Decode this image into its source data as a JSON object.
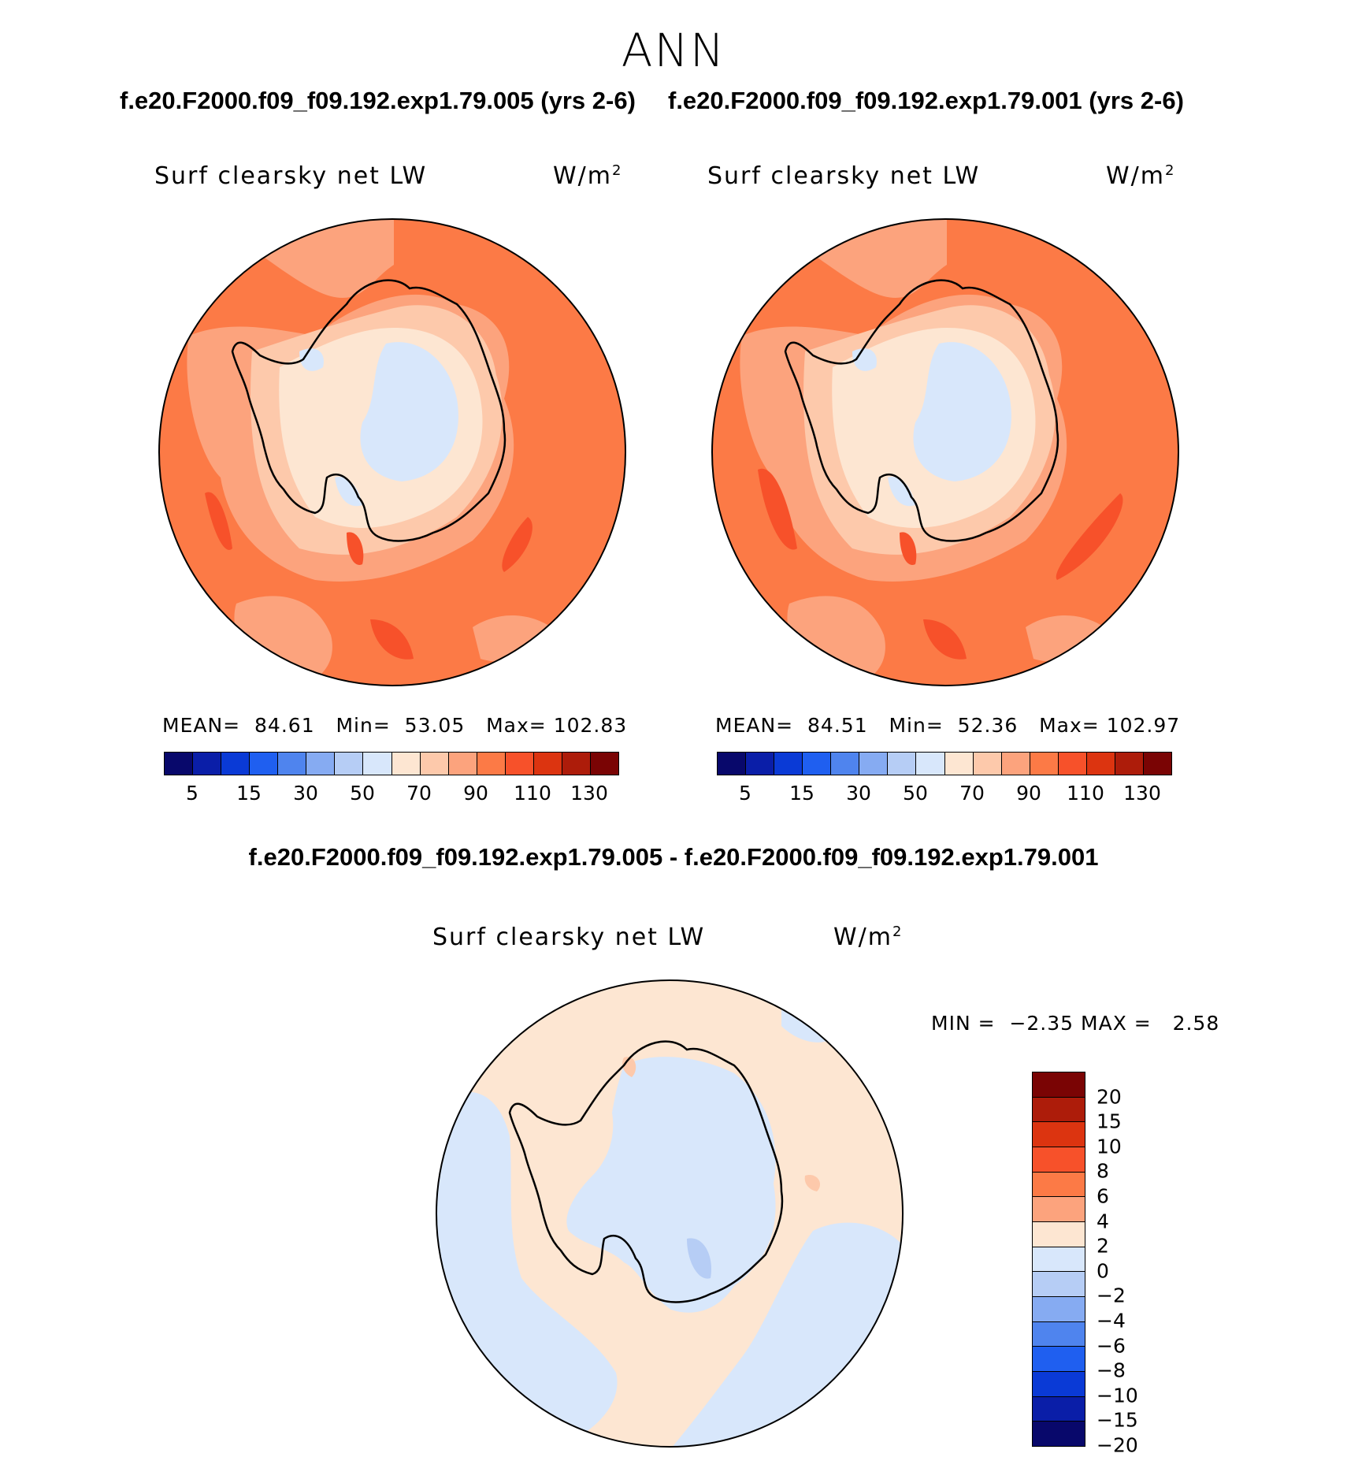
{
  "season": "ANN",
  "case_a_title": "f.e20.F2000.f09_f09.192.exp1.79.005 (yrs 2-6)",
  "case_b_title": "f.e20.F2000.f09_f09.192.exp1.79.001 (yrs 2-6)",
  "diff_title": "f.e20.F2000.f09_f09.192.exp1.79.005 - f.e20.F2000.f09_f09.192.exp1.79.001",
  "variable": "Surf clearsky net LW",
  "units_base": "W/m",
  "units_exp": "2",
  "panel_a": {
    "mean_label": "MEAN=",
    "mean": "84.61",
    "min_label": "Min=",
    "min": "53.05",
    "max_label": "Max=",
    "max": "102.83"
  },
  "panel_b": {
    "mean_label": "MEAN=",
    "mean": "84.51",
    "min_label": "Min=",
    "min": "52.36",
    "max_label": "Max=",
    "max": "102.97"
  },
  "panel_diff": {
    "min_label": "MIN =",
    "min": "−2.35",
    "max_label": "MAX =",
    "max": "2.58"
  },
  "abs_colorbar": {
    "colors": [
      "#08086b",
      "#0a1ea8",
      "#0a3ad6",
      "#1f5ff0",
      "#4f84ee",
      "#86abf2",
      "#b6cdf5",
      "#d8e7fb",
      "#fde6d2",
      "#fdc9ab",
      "#fca37d",
      "#fc7a46",
      "#f7512a",
      "#dc3410",
      "#ad1c0a",
      "#7a0404"
    ],
    "labels": [
      "5",
      "15",
      "30",
      "50",
      "70",
      "90",
      "110",
      "130"
    ]
  },
  "diff_colorbar": {
    "colors": [
      "#7a0404",
      "#ad1c0a",
      "#dc3410",
      "#f7512a",
      "#fc7a46",
      "#fca37d",
      "#fde6d2",
      "#d8e7fb",
      "#b6cdf5",
      "#86abf2",
      "#4f84ee",
      "#1f5ff0",
      "#0a3ad6",
      "#0a1ea8",
      "#08086b"
    ],
    "labels": [
      "20",
      "15",
      "10",
      "8",
      "6",
      "4",
      "2",
      "0",
      "−2",
      "−4",
      "−6",
      "−8",
      "−10",
      "−15",
      "−20"
    ]
  },
  "map_colors": {
    "ocean": "#fc7a46",
    "mid": "#fca37d",
    "light": "#fdc9ab",
    "pale": "#fde6d2",
    "ice": "#d8e7fb",
    "hot": "#f7512a",
    "diff_pos": "#fde6d2",
    "diff_neg": "#d8e7fb",
    "diff_neg2": "#b6cdf5",
    "diff_pos2": "#fdc9ab"
  }
}
